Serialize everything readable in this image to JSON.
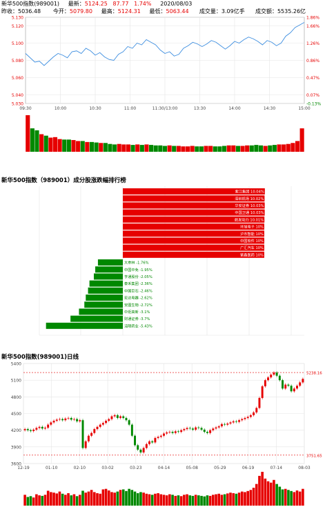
{
  "header": {
    "line1_name": "新华500指数(989001)",
    "latest_label": "最新：",
    "latest_value": "5124.25",
    "change": "87.77",
    "change_pct": "1.74%",
    "date": "2020/08/03",
    "prev_close_label": "昨收：",
    "prev_close": "5036.48",
    "open_label": "今开：",
    "open": "5079.80",
    "high_label": "最高：",
    "high": "5124.31",
    "low_label": "最低：",
    "low": "5063.44",
    "volume_label": "成交量：",
    "volume": "3.09亿手",
    "amount_label": "成交额：",
    "amount": "5535.26亿"
  },
  "colors": {
    "up": "#e60000",
    "down": "#008800",
    "line": "#3d8ee0",
    "grid": "#e5e5e5",
    "frame": "#999999"
  },
  "chart_data": [
    {
      "type": "line",
      "title": "",
      "x_ticks": [
        "09:30",
        "10:00",
        "10:30",
        "11:00",
        "11:30/13:00",
        "13:30",
        "14:00",
        "14:30",
        "15:00"
      ],
      "y_ticks_left": [
        "5.130",
        "5.120",
        "5.100",
        "5.080",
        "5.060",
        "5.040",
        "5.030"
      ],
      "y_ticks_right": [
        "1.86%",
        "1.66%",
        "1.26%",
        "0.86%",
        "0.47%",
        "0.07%",
        "-0.13%"
      ],
      "ylim": [
        5.03,
        5.13
      ],
      "series": [
        {
          "values": [
            5.088,
            5.083,
            5.078,
            5.079,
            5.074,
            5.079,
            5.084,
            5.088,
            5.086,
            5.083,
            5.09,
            5.091,
            5.088,
            5.094,
            5.091,
            5.086,
            5.089,
            5.084,
            5.081,
            5.08,
            5.087,
            5.09,
            5.096,
            5.094,
            5.1,
            5.098,
            5.104,
            5.101,
            5.098,
            5.092,
            5.088,
            5.09,
            5.085,
            5.087,
            5.094,
            5.097,
            5.101,
            5.099,
            5.096,
            5.099,
            5.103,
            5.101,
            5.097,
            5.093,
            5.097,
            5.102,
            5.1,
            5.104,
            5.107,
            5.105,
            5.102,
            5.098,
            5.103,
            5.101,
            5.097,
            5.1,
            5.108,
            5.112,
            5.118,
            5.121,
            5.124
          ]
        }
      ],
      "volume": [
        75,
        48,
        44,
        36,
        33,
        29,
        30,
        26,
        25,
        25,
        24,
        22,
        22,
        20,
        20,
        19,
        18,
        18,
        16,
        15,
        16,
        15,
        15,
        14,
        15,
        14,
        15,
        14,
        13,
        13,
        12,
        13,
        12,
        12,
        11,
        11,
        12,
        11,
        11,
        12,
        12,
        11,
        11,
        12,
        13,
        13,
        12,
        12,
        13,
        13,
        14,
        13,
        12,
        13,
        14,
        15,
        15,
        16,
        18,
        22,
        48
      ]
    },
    {
      "type": "bar",
      "title": "新华500指数（989001）成分股涨跌幅排行榜",
      "up": [
        {
          "name": "紫江集团",
          "value": 10.04
        },
        {
          "name": "深圳机场",
          "value": 10.02
        },
        {
          "name": "华安证券",
          "value": 10.03
        },
        {
          "name": "中国卫通",
          "value": 10.03
        },
        {
          "name": "航发动力",
          "value": 10.01
        },
        {
          "name": "环旭电子",
          "value": 10
        },
        {
          "name": "沪市智能",
          "value": 10
        },
        {
          "name": "中国软件",
          "value": 10
        },
        {
          "name": "广汇汽车",
          "value": 10
        },
        {
          "name": "紫鑫医药",
          "value": 10
        }
      ],
      "up_labels": [
        "紫江集团 10.04%",
        "深圳机场 10.02%",
        "华安证券 10.03%",
        "中国卫通 10.03%",
        "航发动力 10.01%",
        "环旭电子 10%",
        "沪市智能 10%",
        "中国软件 10%",
        "广汇汽车 10%",
        "紫鑫医药 10%"
      ],
      "down": [
        {
          "name": "大参林",
          "value": -1.76
        },
        {
          "name": "中国中免",
          "value": -1.95
        },
        {
          "name": "亨通股份",
          "value": -2.05
        },
        {
          "name": "泰禾集团",
          "value": -2.36
        },
        {
          "name": "中国巨石",
          "value": -2.46
        },
        {
          "name": "宏达电器",
          "value": -2.62
        },
        {
          "name": "安图生物",
          "value": -2.72
        },
        {
          "name": "中炬高新",
          "value": -3.1
        },
        {
          "name": "财通证券",
          "value": -3.7
        },
        {
          "name": "涪陵药业",
          "value": -5.43
        }
      ],
      "down_labels": [
        "大参林  -1.76%",
        "中国中免 -1.95%",
        "亨通股份 -2.05%",
        "泰禾集团 -2.36%",
        "中国巨石 -2.46%",
        "宏达电器 -2.62%",
        "安图生物 -2.72%",
        "中炬高新 -3.1%",
        "财通证券 -3.7%",
        "涪陵药业 -5.43%"
      ]
    },
    {
      "type": "line",
      "title": "新华500指数(989001)日线",
      "x_ticks": [
        "12-19",
        "01-10",
        "02-10",
        "03-02",
        "03-23",
        "04-14",
        "05-08",
        "05-29",
        "06-19",
        "07-14",
        "08-03"
      ],
      "y_ticks": [
        "5400",
        "5100",
        "4800",
        "4500",
        "4200",
        "3900",
        "3600"
      ],
      "ylim": [
        3600,
        5400
      ],
      "max_label": "5238.16",
      "min_label": "3751.65",
      "closes": [
        4220,
        4200,
        4185,
        4210,
        4240,
        4260,
        4230,
        4245,
        4300,
        4340,
        4370,
        4390,
        4400,
        4380,
        4410,
        4420,
        4390,
        4400,
        4360,
        4380,
        3880,
        4000,
        4100,
        4150,
        4220,
        4260,
        4300,
        4330,
        4370,
        4400,
        4450,
        4470,
        4420,
        4450,
        4420,
        4380,
        4300,
        4100,
        3930,
        3850,
        3800,
        3880,
        3950,
        4000,
        3980,
        4060,
        4080,
        4100,
        4140,
        4160,
        4170,
        4150,
        4180,
        4170,
        4200,
        4220,
        4240,
        4230,
        4210,
        4250,
        4240,
        4210,
        4170,
        4150,
        4200,
        4230,
        4250,
        4270,
        4310,
        4300,
        4320,
        4340,
        4360,
        4350,
        4380,
        4400,
        4420,
        4440,
        4470,
        4520,
        4600,
        4780,
        4990,
        5100,
        5150,
        5200,
        5238,
        5180,
        5100,
        4950,
        5020,
        5000,
        4900,
        4950,
        5000,
        5060,
        5124
      ],
      "volume": [
        40,
        32,
        35,
        30,
        42,
        38,
        36,
        40,
        55,
        50,
        48,
        45,
        52,
        44,
        40,
        46,
        38,
        42,
        35,
        40,
        55,
        48,
        52,
        58,
        50,
        46,
        44,
        60,
        62,
        56,
        50,
        48,
        52,
        58,
        60,
        54,
        62,
        58,
        52,
        46,
        50,
        48,
        44,
        42,
        40,
        44,
        46,
        42,
        40,
        38,
        42,
        40,
        36,
        38,
        35,
        40,
        42,
        38,
        36,
        40,
        38,
        36,
        34,
        38,
        36,
        40,
        42,
        44,
        40,
        42,
        45,
        48,
        46,
        44,
        48,
        52,
        50,
        54,
        58,
        66,
        80,
        110,
        125,
        100,
        90,
        85,
        95,
        80,
        70,
        60,
        62,
        58,
        54,
        50,
        56,
        52,
        62
      ]
    }
  ]
}
